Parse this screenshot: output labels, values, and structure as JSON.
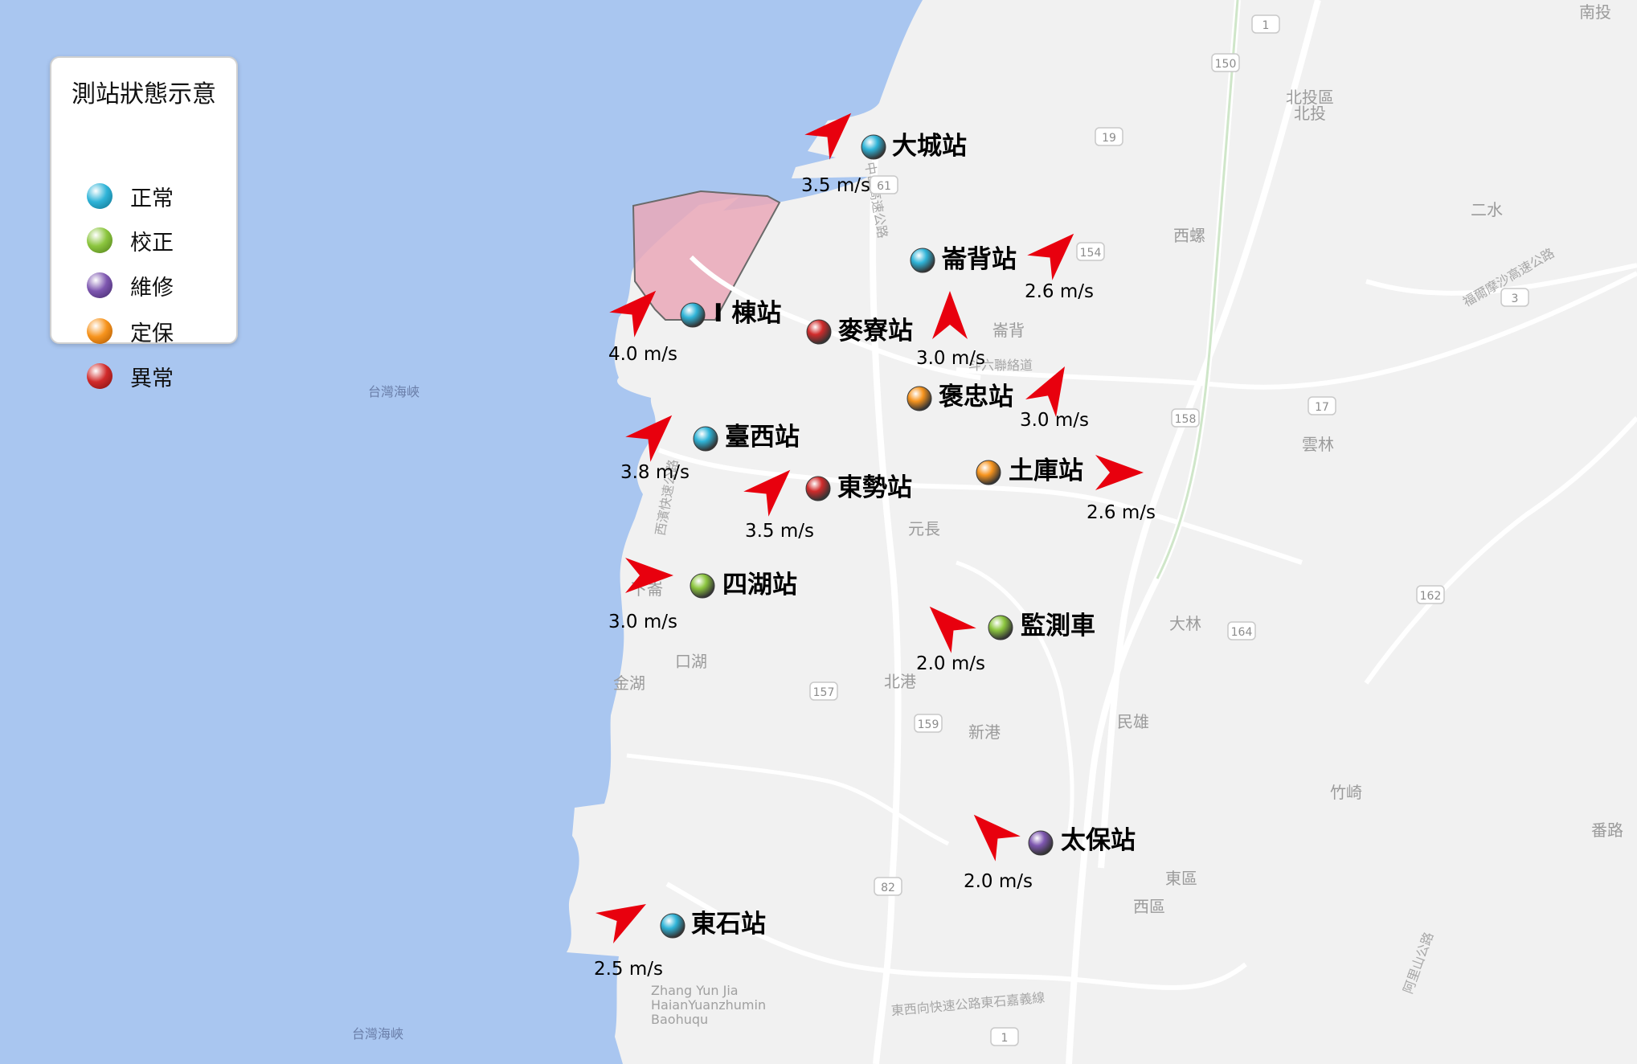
{
  "sea_labels": [
    "台灣海峽",
    "台灣海峽"
  ],
  "legend": {
    "title": "測站狀態示意",
    "items": [
      {
        "label": "正常",
        "key": "normal"
      },
      {
        "label": "校正",
        "key": "calibration"
      },
      {
        "label": "維修",
        "key": "repair"
      },
      {
        "label": "定保",
        "key": "maintenance"
      },
      {
        "label": "異常",
        "key": "abnormal"
      }
    ]
  },
  "status_colors": {
    "normal": "#2fb4d8",
    "calibration": "#8cc63f",
    "repair": "#7e57b0",
    "maintenance": "#f7941d",
    "abnormal": "#d12b2b"
  },
  "arrow_color": "#e8000e",
  "stations": [
    {
      "name": "大城站",
      "status": "normal",
      "wind": "3.5 m/s"
    },
    {
      "name": "崙背站",
      "status": "normal",
      "wind": "2.6 m/s"
    },
    {
      "name": "I 棟站",
      "status": "normal",
      "wind": "4.0 m/s"
    },
    {
      "name": "麥寮站",
      "status": "abnormal",
      "wind": "3.0 m/s"
    },
    {
      "name": "褒忠站",
      "status": "maintenance",
      "wind": "3.0 m/s"
    },
    {
      "name": "臺西站",
      "status": "normal",
      "wind": "3.8 m/s"
    },
    {
      "name": "土庫站",
      "status": "maintenance",
      "wind": "2.6 m/s"
    },
    {
      "name": "東勢站",
      "status": "abnormal",
      "wind": "3.5 m/s"
    },
    {
      "name": "四湖站",
      "status": "calibration",
      "wind": "3.0 m/s"
    },
    {
      "name": "監測車",
      "status": "calibration",
      "wind": "2.0 m/s"
    },
    {
      "name": "太保站",
      "status": "repair",
      "wind": "2.0 m/s"
    },
    {
      "name": "東石站",
      "status": "normal",
      "wind": "2.5 m/s"
    }
  ],
  "place_labels": [
    "南投",
    "北投區",
    "北投",
    "二水",
    "西螺",
    "崙背",
    "雲林",
    "元長",
    "大林",
    "北港",
    "口湖",
    "金湖",
    "新港",
    "民雄",
    "竹崎",
    "東區",
    "西區",
    "番路",
    "下崙"
  ],
  "road_labels": [
    "福爾摩沙高速公路",
    "中山高速公路",
    "西濱快速公路",
    "東西向快速公路東石嘉義線",
    "阿里山公路",
    "斗六聯絡道"
  ],
  "route_numbers": [
    "1",
    "150",
    "19",
    "61",
    "154",
    "3",
    "158",
    "17",
    "162",
    "164",
    "157",
    "159",
    "82",
    "1"
  ],
  "romanized_labels": [
    "Zhang Yun Jia",
    "HaianYuanzhumin",
    "Baohuqu"
  ]
}
